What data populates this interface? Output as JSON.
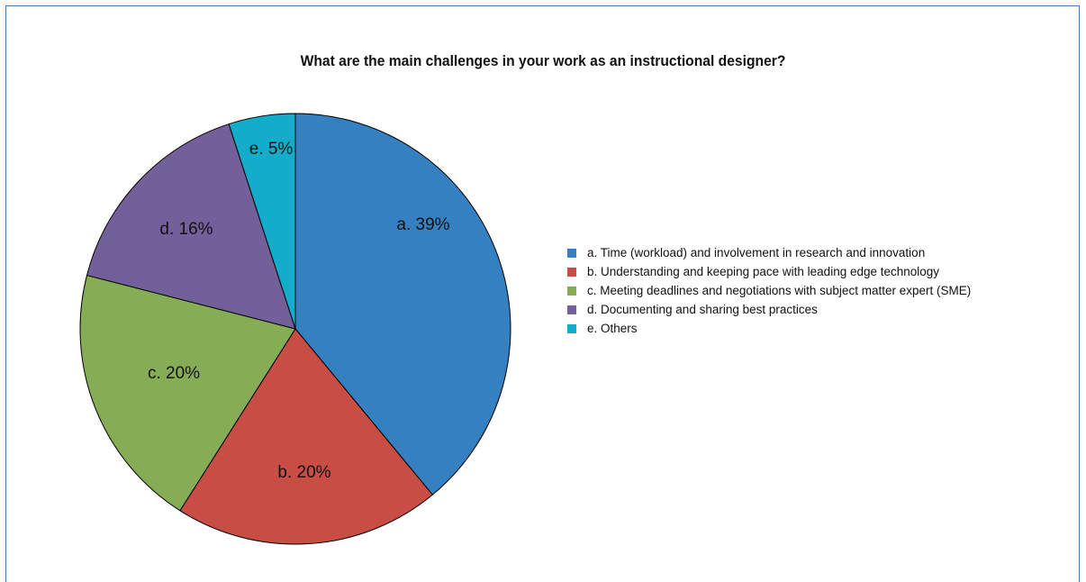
{
  "chart_data": {
    "type": "pie",
    "title": "What are the main challenges in your work as an instructional designer?",
    "slices": [
      {
        "key": "a",
        "label": "a. 39%",
        "value": 39,
        "color": "#3580c0",
        "legend": "a. Time (workload) and involvement in research and innovation"
      },
      {
        "key": "b",
        "label": "b. 20%",
        "value": 20,
        "color": "#c84e45",
        "legend": "b. Understanding and keeping pace with leading edge technology"
      },
      {
        "key": "c",
        "label": "c. 20%",
        "value": 20,
        "color": "#86ad55",
        "legend": "c. Meeting deadlines and negotiations with subject matter expert (SME)"
      },
      {
        "key": "d",
        "label": "d. 16%",
        "value": 16,
        "color": "#735f99",
        "legend": "d. Documenting and sharing best practices"
      },
      {
        "key": "e",
        "label": "e. 5%",
        "value": 5,
        "color": "#13adcb",
        "legend": "e. Others"
      }
    ],
    "legend_position": "right"
  }
}
